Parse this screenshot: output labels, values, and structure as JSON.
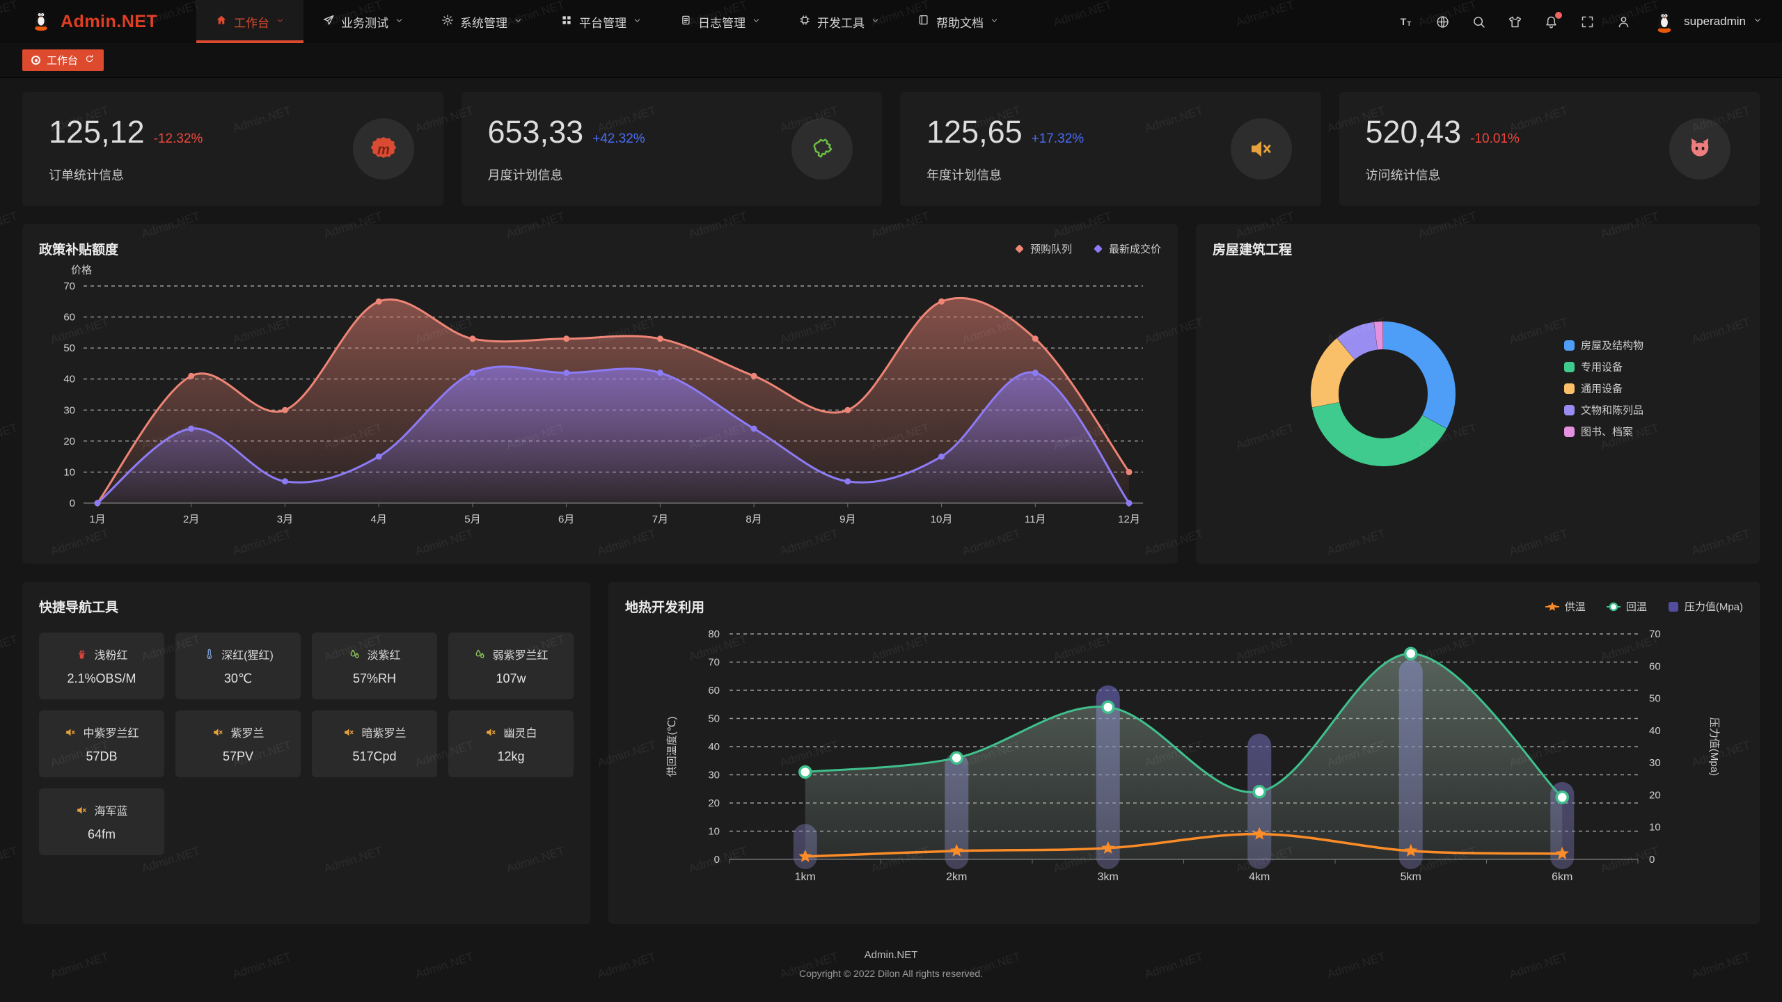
{
  "watermark": "Admin.NET",
  "navbar": {
    "logo_text": "Admin.NET",
    "menu": [
      {
        "key": "workbench",
        "label": "工作台",
        "icon": "home-icon",
        "active": true
      },
      {
        "key": "business-test",
        "label": "业务测试",
        "icon": "send-icon",
        "active": false
      },
      {
        "key": "system-mgmt",
        "label": "系统管理",
        "icon": "gear-icon",
        "active": false
      },
      {
        "key": "platform-mgmt",
        "label": "平台管理",
        "icon": "grid-icon",
        "active": false
      },
      {
        "key": "log-mgmt",
        "label": "日志管理",
        "icon": "document-icon",
        "active": false
      },
      {
        "key": "dev-tools",
        "label": "开发工具",
        "icon": "chip-icon",
        "active": false
      },
      {
        "key": "help-docs",
        "label": "帮助文档",
        "icon": "book-icon",
        "active": false
      }
    ],
    "tools": [
      "font-size-icon",
      "language-icon",
      "search-icon",
      "theme-icon",
      "notification-bell-icon",
      "fullscreen-icon",
      "user-icon"
    ],
    "has_notification_dot": true,
    "username": "superadmin"
  },
  "tabbar": {
    "active_tab": "工作台"
  },
  "stats": [
    {
      "value": "125,12",
      "delta": "-12.32%",
      "trend": "down",
      "label": "订单统计信息",
      "icon": "meetup-icon"
    },
    {
      "value": "653,33",
      "delta": "+42.32%",
      "trend": "up",
      "label": "月度计划信息",
      "icon": "china-map-icon"
    },
    {
      "value": "125,65",
      "delta": "+17.32%",
      "trend": "up",
      "label": "年度计划信息",
      "icon": "speaker-icon"
    },
    {
      "value": "520,43",
      "delta": "-10.01%",
      "trend": "down",
      "label": "访问统计信息",
      "icon": "cat-icon"
    }
  ],
  "colors": {
    "accent": "#dd4a2e",
    "up": "#4b6cf5",
    "down": "#f0483e"
  },
  "chart_data": [
    {
      "id": "subsidy",
      "type": "area",
      "title": "政策补贴额度",
      "ylabel": "价格",
      "ylim": [
        0,
        70
      ],
      "ytick_step": 10,
      "grid": true,
      "legend_position": "top-right",
      "categories": [
        "1月",
        "2月",
        "3月",
        "4月",
        "5月",
        "6月",
        "7月",
        "8月",
        "9月",
        "10月",
        "11月",
        "12月"
      ],
      "series": [
        {
          "name": "预购队列",
          "color": "#ee8576",
          "values": [
            0,
            41,
            30,
            65,
            53,
            53,
            53,
            41,
            30,
            65,
            53,
            10
          ]
        },
        {
          "name": "最新成交价",
          "color": "#8d7bf5",
          "values": [
            0,
            24,
            7,
            15,
            42,
            42,
            42,
            24,
            7,
            15,
            42,
            0
          ]
        }
      ]
    },
    {
      "id": "building",
      "type": "pie",
      "title": "房屋建筑工程",
      "legend_position": "right",
      "slices": [
        {
          "name": "房屋及结构物",
          "value": 33,
          "color": "#4e9ef7"
        },
        {
          "name": "专用设备",
          "value": 39,
          "color": "#3ecb8d"
        },
        {
          "name": "通用设备",
          "value": 17,
          "color": "#fac069"
        },
        {
          "name": "文物和陈列品",
          "value": 9,
          "color": "#998df2"
        },
        {
          "name": "图书、档案",
          "value": 2,
          "color": "#e491e0"
        }
      ]
    },
    {
      "id": "geothermal",
      "type": "mixed",
      "title": "地热开发利用",
      "categories": [
        "1km",
        "2km",
        "3km",
        "4km",
        "5km",
        "6km"
      ],
      "ylabel_left": "供回温度(℃)",
      "ylabel_right": "压力值(Mpa)",
      "ylim_left": [
        0,
        80
      ],
      "ylim_right": [
        0,
        70
      ],
      "grid": true,
      "legend_position": "top-right",
      "series": [
        {
          "name": "供温",
          "type": "line",
          "marker": "star",
          "axis": "left",
          "color": "#fb8c28",
          "values": [
            1,
            3,
            4,
            9,
            3,
            2
          ]
        },
        {
          "name": "回温",
          "type": "line",
          "marker": "circle",
          "axis": "left",
          "color": "#3fc08c",
          "area": true,
          "values": [
            31,
            36,
            54,
            24,
            73,
            22
          ]
        },
        {
          "name": "压力值(Mpa)",
          "type": "bar",
          "axis": "right",
          "color": "#55509b",
          "values": [
            11,
            33,
            54,
            39,
            62,
            24
          ]
        }
      ]
    }
  ],
  "quick_nav": {
    "title": "快捷导航工具",
    "items": [
      {
        "name": "浅粉红",
        "value": "2.1%OBS/M",
        "icon": "brazier-icon",
        "icon_color": "#d8453c"
      },
      {
        "name": "深红(猩红)",
        "value": "30℃",
        "icon": "thermometer-icon",
        "icon_color": "#7c9fd4"
      },
      {
        "name": "淡紫红",
        "value": "57%RH",
        "icon": "humidity-icon",
        "icon_color": "#8fcf5a"
      },
      {
        "name": "弱紫罗兰红",
        "value": "107w",
        "icon": "humidity-icon",
        "icon_color": "#8fcf5a"
      },
      {
        "name": "中紫罗兰红",
        "value": "57DB",
        "icon": "speaker-icon",
        "icon_color": "#e6a23c"
      },
      {
        "name": "紫罗兰",
        "value": "57PV",
        "icon": "speaker-icon",
        "icon_color": "#e6a23c"
      },
      {
        "name": "暗紫罗兰",
        "value": "517Cpd",
        "icon": "speaker-icon",
        "icon_color": "#e6a23c"
      },
      {
        "name": "幽灵白",
        "value": "12kg",
        "icon": "speaker-icon",
        "icon_color": "#e6a23c"
      },
      {
        "name": "海军蓝",
        "value": "64fm",
        "icon": "speaker-icon",
        "icon_color": "#e6a23c"
      }
    ]
  },
  "footer": {
    "line1": "Admin.NET",
    "line2": "Copyright © 2022 Dilon All rights reserved."
  }
}
